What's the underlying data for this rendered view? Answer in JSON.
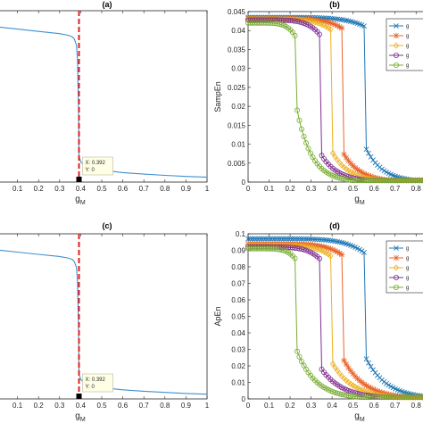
{
  "chart_data": [
    {
      "panel": "(a)",
      "type": "line",
      "xlabel": "g_M",
      "ylabel": "",
      "xlim": [
        0,
        1
      ],
      "x_ticks": [
        0.1,
        0.2,
        0.3,
        0.4,
        0.5,
        0.6,
        0.7,
        0.8,
        0.9,
        1
      ],
      "series": [
        {
          "color": "#3f8fcf",
          "x": [
            0.0,
            0.1,
            0.2,
            0.3,
            0.34,
            0.36,
            0.37,
            0.38,
            0.385,
            0.39,
            0.392,
            0.4,
            0.42,
            0.45,
            0.5,
            0.6,
            0.7,
            0.8,
            0.9,
            1.0
          ],
          "y": [
            1.0,
            0.985,
            0.97,
            0.955,
            0.945,
            0.935,
            0.92,
            0.88,
            0.78,
            0.45,
            0.16,
            0.12,
            0.095,
            0.08,
            0.065,
            0.05,
            0.04,
            0.032,
            0.025,
            0.02
          ]
        }
      ],
      "vline": {
        "x": 0.392,
        "color": "#e32020"
      },
      "datatip": {
        "x": 0.392,
        "y": 0,
        "label_x": "X: 0.392",
        "label_y": "Y: 0"
      }
    },
    {
      "panel": "(b)",
      "type": "line",
      "xlabel": "g_M",
      "ylabel": "SampEn",
      "xlim": [
        0,
        0.85
      ],
      "ylim": [
        0,
        0.045
      ],
      "x_ticks": [
        0,
        0.1,
        0.2,
        0.3,
        0.4,
        0.5,
        0.6,
        0.7,
        0.8
      ],
      "x_tick_labels": [
        "0",
        "0.1",
        "0.2",
        "0.3",
        "0.4",
        "0.5",
        "0.6",
        "0.7",
        "0.8"
      ],
      "y_ticks": [
        0,
        0.005,
        0.01,
        0.015,
        0.02,
        0.025,
        0.03,
        0.035,
        0.04,
        0.045
      ],
      "y_tick_labels": [
        "0",
        "0.005",
        "0.01",
        "0.015",
        "0.02",
        "0.025",
        "0.03",
        "0.035",
        "0.04",
        "0.045"
      ],
      "series": [
        {
          "color": "#1f77b4",
          "marker": "x",
          "gc": 0.56,
          "y0": 0.0435,
          "y1": 0.041,
          "tail": 0.009,
          "k": 0.08
        },
        {
          "color": "#e8642a",
          "marker": "star",
          "gc": 0.45,
          "y0": 0.0432,
          "y1": 0.0405,
          "tail": 0.008,
          "k": 0.08
        },
        {
          "color": "#edb120",
          "marker": "diamond",
          "gc": 0.4,
          "y0": 0.043,
          "y1": 0.04,
          "tail": 0.008,
          "k": 0.08
        },
        {
          "color": "#7e2f8e",
          "marker": "circle",
          "gc": 0.34,
          "y0": 0.0428,
          "y1": 0.039,
          "tail": 0.008,
          "k": 0.08
        },
        {
          "color": "#77ac30",
          "marker": "circle",
          "gc": 0.23,
          "y0": 0.042,
          "y1": 0.038,
          "tail": 0.02,
          "k": 0.07
        }
      ],
      "legend": {
        "position": "top-right",
        "entries": [
          "g",
          "g",
          "g",
          "g",
          "g"
        ]
      }
    },
    {
      "panel": "(c)",
      "type": "line",
      "xlabel": "g_M",
      "ylabel": "",
      "xlim": [
        0,
        1
      ],
      "x_ticks": [
        0.1,
        0.2,
        0.3,
        0.4,
        0.5,
        0.6,
        0.7,
        0.8,
        0.9,
        1
      ],
      "series": [
        {
          "color": "#3f8fcf",
          "x": [
            0.0,
            0.1,
            0.2,
            0.3,
            0.34,
            0.36,
            0.37,
            0.38,
            0.385,
            0.39,
            0.392,
            0.4,
            0.42,
            0.45,
            0.5,
            0.6,
            0.7,
            0.8,
            0.9,
            1.0
          ],
          "y": [
            1.0,
            0.985,
            0.97,
            0.955,
            0.945,
            0.935,
            0.92,
            0.88,
            0.78,
            0.45,
            0.16,
            0.12,
            0.095,
            0.08,
            0.065,
            0.05,
            0.04,
            0.032,
            0.025,
            0.02
          ]
        }
      ],
      "vline": {
        "x": 0.392,
        "color": "#e32020"
      },
      "datatip": {
        "x": 0.392,
        "y": 0,
        "label_x": "X: 0.392",
        "label_y": "Y: 0"
      }
    },
    {
      "panel": "(d)",
      "type": "line",
      "xlabel": "g_M",
      "ylabel": "ApEn",
      "xlim": [
        0,
        0.85
      ],
      "ylim": [
        0,
        0.1
      ],
      "x_ticks": [
        0,
        0.1,
        0.2,
        0.3,
        0.4,
        0.5,
        0.6,
        0.7,
        0.8
      ],
      "x_tick_labels": [
        "0",
        "0.1",
        "0.2",
        "0.3",
        "0.4",
        "0.5",
        "0.6",
        "0.7",
        "0.8"
      ],
      "y_ticks": [
        0,
        0.01,
        0.02,
        0.03,
        0.04,
        0.05,
        0.06,
        0.07,
        0.08,
        0.09,
        0.1
      ],
      "y_tick_labels": [
        "0",
        "0.01",
        "0.02",
        "0.03",
        "0.04",
        "0.05",
        "0.06",
        "0.07",
        "0.08",
        "0.09",
        "0.1"
      ],
      "series": [
        {
          "color": "#1f77b4",
          "marker": "x",
          "gc": 0.56,
          "y0": 0.097,
          "y1": 0.088,
          "tail": 0.025,
          "k": 0.1
        },
        {
          "color": "#e8642a",
          "marker": "star",
          "gc": 0.45,
          "y0": 0.094,
          "y1": 0.087,
          "tail": 0.025,
          "k": 0.1
        },
        {
          "color": "#edb120",
          "marker": "diamond",
          "gc": 0.4,
          "y0": 0.093,
          "y1": 0.086,
          "tail": 0.022,
          "k": 0.1
        },
        {
          "color": "#7e2f8e",
          "marker": "circle",
          "gc": 0.34,
          "y0": 0.092,
          "y1": 0.085,
          "tail": 0.02,
          "k": 0.1
        },
        {
          "color": "#77ac30",
          "marker": "circle",
          "gc": 0.23,
          "y0": 0.091,
          "y1": 0.084,
          "tail": 0.03,
          "k": 0.09
        }
      ],
      "legend": {
        "position": "top-right",
        "entries": [
          "g",
          "g",
          "g",
          "g",
          "g"
        ]
      }
    }
  ]
}
